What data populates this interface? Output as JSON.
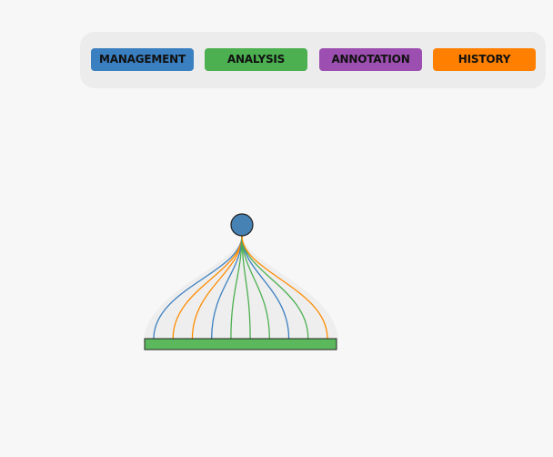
{
  "toolbar": {
    "buttons": [
      {
        "label": "MANAGEMENT",
        "color": "#3a7fc0"
      },
      {
        "label": "ANALYSIS",
        "color": "#4caf50"
      },
      {
        "label": "ANNOTATION",
        "color": "#9c4fb0"
      },
      {
        "label": "HISTORY",
        "color": "#ff8000"
      }
    ]
  },
  "graph": {
    "node_color": "#4682b4",
    "bar_color": "#5cb85c",
    "fan_fill": "#eeeeee",
    "links": [
      {
        "color": "#3a7fc0"
      },
      {
        "color": "#ff8c00"
      },
      {
        "color": "#ff8c00"
      },
      {
        "color": "#3a7fc0"
      },
      {
        "color": "#4caf50"
      },
      {
        "color": "#4caf50"
      },
      {
        "color": "#4caf50"
      },
      {
        "color": "#3a7fc0"
      },
      {
        "color": "#4caf50"
      },
      {
        "color": "#ff8c00"
      }
    ]
  }
}
